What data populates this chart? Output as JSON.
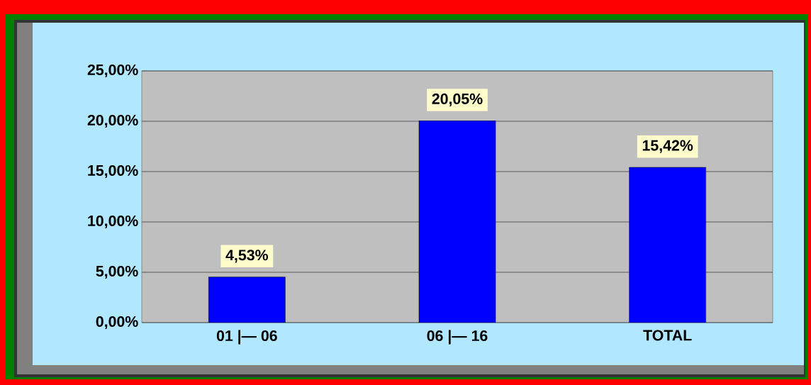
{
  "chart_data": {
    "type": "bar",
    "categories": [
      "01 |— 06",
      "06 |— 16",
      "TOTAL"
    ],
    "values": [
      4.53,
      20.05,
      15.42
    ],
    "value_labels": [
      "4,53%",
      "20,05%",
      "15,42%"
    ],
    "color": "#0000ff",
    "ylim": [
      0,
      25
    ],
    "yticks": [
      {
        "value": 0,
        "label": "0,00%"
      },
      {
        "value": 5,
        "label": "5,00%"
      },
      {
        "value": 10,
        "label": "10,00%"
      },
      {
        "value": 15,
        "label": "15,00%"
      },
      {
        "value": 20,
        "label": "20,00%"
      },
      {
        "value": 25,
        "label": "25,00%"
      }
    ],
    "grid": "y"
  }
}
